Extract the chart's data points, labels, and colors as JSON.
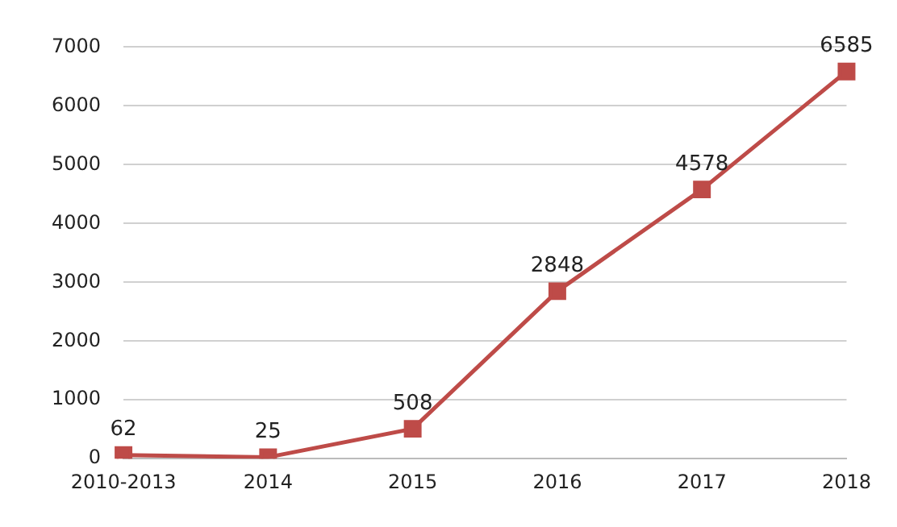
{
  "chart_data": {
    "type": "line",
    "categories": [
      "2010-2013",
      "2014",
      "2015",
      "2016",
      "2017",
      "2018"
    ],
    "series": [
      {
        "color": "#be4b48",
        "values": [
          62,
          25,
          508,
          2848,
          4578,
          6585
        ]
      }
    ],
    "ylim": [
      0,
      7000
    ],
    "yticks": [
      0,
      1000,
      2000,
      3000,
      4000,
      5000,
      6000,
      7000
    ],
    "grid": "y",
    "marker": "square",
    "line_style": "solid",
    "data_labels": true,
    "legend": false
  }
}
